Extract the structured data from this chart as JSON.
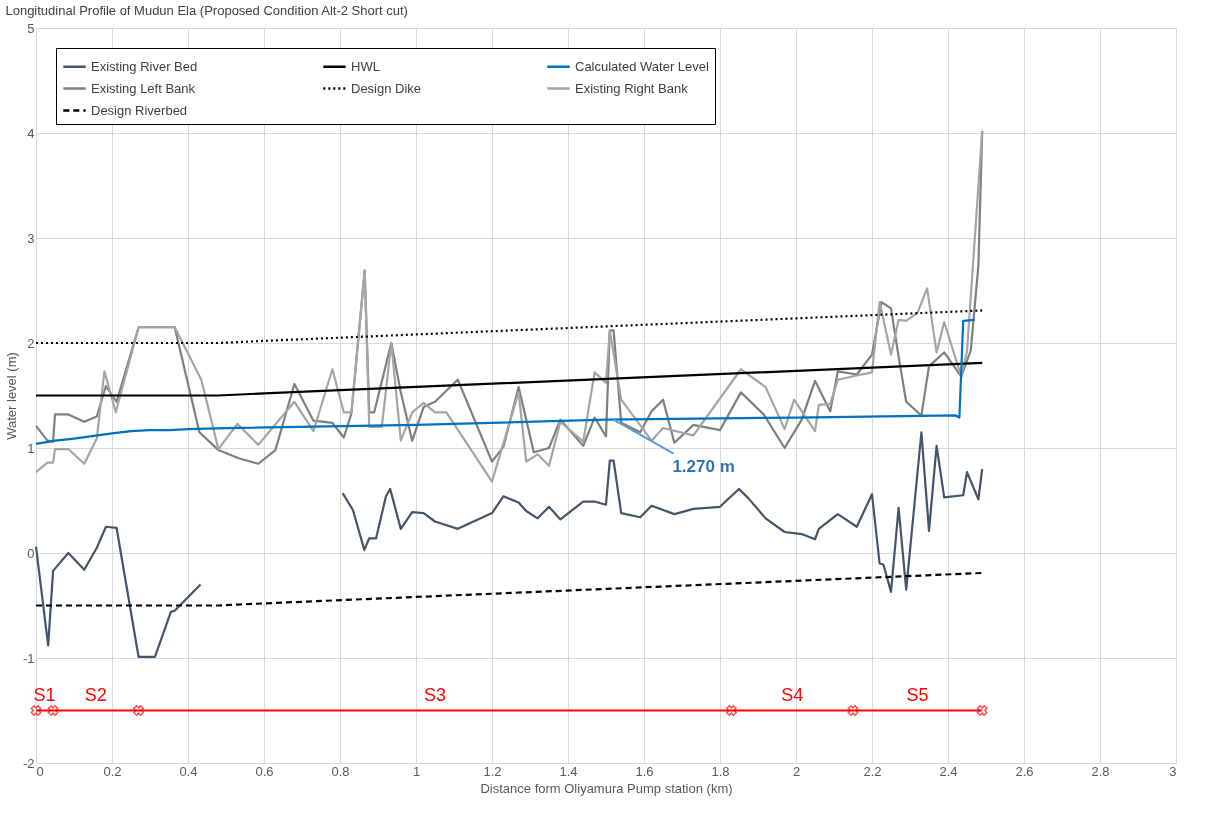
{
  "chart_data": {
    "type": "line",
    "title": "Longitudinal Profile of Mudun Ela (Proposed Condition Alt-2 Short cut)",
    "xlabel": "Distance form Oliyamura Pump station (km)",
    "ylabel": "Water level (m)",
    "xlim": [
      0,
      3
    ],
    "xticks": [
      0,
      0.2,
      0.4,
      0.6,
      0.8,
      1,
      1.2,
      1.4,
      1.6,
      1.8,
      2,
      2.2,
      2.4,
      2.6,
      2.8,
      3
    ],
    "ylim": [
      -2,
      5
    ],
    "yticks": [
      -2,
      -1,
      0,
      1,
      2,
      3,
      4,
      5
    ],
    "grid": true,
    "legend": "top",
    "series": [
      {
        "name": "Existing River Bed",
        "color": "#44546a",
        "line_style": "solid",
        "x": [
          0,
          0.032,
          0.045,
          0.085,
          0.127,
          0.16,
          0.184,
          0.212,
          0.27,
          0.313,
          0.355,
          0.365,
          0.433,
          0.6,
          0.807,
          0.834,
          0.864,
          0.877,
          0.895,
          0.921,
          0.932,
          0.96,
          0.99,
          1.02,
          1.05,
          1.11,
          1.2,
          1.23,
          1.27,
          1.29,
          1.32,
          1.35,
          1.38,
          1.44,
          1.47,
          1.5,
          1.51,
          1.52,
          1.54,
          1.59,
          1.62,
          1.68,
          1.73,
          1.8,
          1.82,
          1.85,
          1.875,
          1.92,
          1.97,
          2.015,
          2.05,
          2.06,
          2.11,
          2.16,
          2.2,
          2.22,
          2.23,
          2.25,
          2.27,
          2.29,
          2.33,
          2.35,
          2.37,
          2.39,
          2.44,
          2.45,
          2.48,
          2.49
        ],
        "values": [
          0.06,
          -0.88,
          -0.17,
          0.0,
          -0.16,
          0.05,
          0.25,
          0.24,
          -0.99,
          -0.99,
          -0.56,
          -0.55,
          -0.3,
          null,
          0.57,
          0.41,
          0.03,
          0.14,
          0.14,
          0.54,
          0.61,
          0.23,
          0.39,
          0.38,
          0.3,
          0.23,
          0.38,
          0.54,
          0.48,
          0.4,
          0.33,
          0.44,
          0.32,
          0.49,
          0.49,
          0.46,
          0.88,
          0.88,
          0.38,
          0.34,
          0.45,
          0.37,
          0.42,
          0.44,
          0.51,
          0.61,
          0.52,
          0.33,
          0.2,
          0.18,
          0.13,
          0.23,
          0.37,
          0.25,
          0.56,
          -0.1,
          -0.11,
          -0.37,
          0.43,
          -0.35,
          1.15,
          0.21,
          1.02,
          0.53,
          0.55,
          0.77,
          0.51,
          0.8
        ]
      },
      {
        "name": "Existing Left Bank",
        "color": "#7f7f7f",
        "line_style": "solid",
        "x": [
          0,
          0.03,
          0.045,
          0.05,
          0.085,
          0.127,
          0.16,
          0.184,
          0.212,
          0.27,
          0.365,
          0.43,
          0.48,
          0.535,
          0.585,
          0.63,
          0.68,
          0.73,
          0.78,
          0.81,
          0.83,
          0.865,
          0.877,
          0.89,
          0.935,
          0.96,
          0.99,
          1.02,
          1.05,
          1.11,
          1.2,
          1.23,
          1.27,
          1.31,
          1.35,
          1.38,
          1.44,
          1.47,
          1.5,
          1.51,
          1.52,
          1.54,
          1.59,
          1.62,
          1.65,
          1.68,
          1.73,
          1.8,
          1.855,
          1.915,
          1.97,
          2.015,
          2.05,
          2.09,
          2.11,
          2.16,
          2.2,
          2.225,
          2.25,
          2.27,
          2.29,
          2.33,
          2.35,
          2.39,
          2.435,
          2.46,
          2.48,
          2.49
        ],
        "values": [
          1.21,
          1.07,
          1.06,
          1.32,
          1.32,
          1.25,
          1.3,
          1.59,
          1.44,
          2.15,
          2.15,
          1.15,
          0.98,
          0.9,
          0.85,
          0.98,
          1.61,
          1.26,
          1.24,
          1.1,
          1.33,
          2.69,
          1.34,
          1.34,
          2.0,
          1.53,
          1.07,
          1.39,
          1.44,
          1.65,
          0.87,
          1.01,
          1.58,
          0.96,
          1.0,
          1.27,
          1.02,
          1.29,
          1.11,
          2.12,
          2.12,
          1.24,
          1.15,
          1.35,
          1.46,
          1.05,
          1.22,
          1.17,
          1.53,
          1.32,
          1.0,
          1.27,
          1.64,
          1.35,
          1.73,
          1.7,
          1.89,
          2.39,
          2.33,
          1.87,
          1.44,
          1.31,
          1.78,
          1.91,
          1.68,
          1.93,
          2.74,
          4.02
        ]
      },
      {
        "name": "Existing Right Bank",
        "color": "#a5a5a5",
        "line_style": "solid",
        "x": [
          0,
          0.03,
          0.045,
          0.05,
          0.085,
          0.127,
          0.16,
          0.18,
          0.21,
          0.27,
          0.365,
          0.435,
          0.48,
          0.53,
          0.585,
          0.68,
          0.73,
          0.78,
          0.81,
          0.83,
          0.865,
          0.877,
          0.91,
          0.935,
          0.96,
          0.99,
          1.02,
          1.05,
          1.08,
          1.2,
          1.27,
          1.29,
          1.32,
          1.35,
          1.38,
          1.44,
          1.47,
          1.5,
          1.51,
          1.54,
          1.62,
          1.65,
          1.73,
          1.855,
          1.92,
          1.97,
          1.995,
          2.05,
          2.06,
          2.09,
          2.11,
          2.16,
          2.2,
          2.22,
          2.25,
          2.27,
          2.29,
          2.32,
          2.345,
          2.37,
          2.39,
          2.435,
          2.45,
          2.49
        ],
        "values": [
          0.77,
          0.86,
          0.86,
          0.99,
          0.99,
          0.85,
          1.09,
          1.73,
          1.34,
          2.15,
          2.15,
          1.65,
          0.99,
          1.23,
          1.03,
          1.44,
          1.16,
          1.75,
          1.34,
          1.34,
          2.69,
          1.2,
          1.2,
          2.0,
          1.07,
          1.34,
          1.43,
          1.34,
          1.34,
          0.68,
          1.53,
          0.87,
          0.94,
          0.83,
          1.25,
          1.06,
          1.72,
          1.62,
          2.12,
          1.46,
          1.07,
          1.19,
          1.12,
          1.75,
          1.58,
          1.18,
          1.46,
          1.16,
          1.41,
          1.42,
          1.65,
          1.69,
          1.72,
          2.39,
          1.89,
          2.22,
          2.21,
          2.29,
          2.52,
          1.91,
          2.2,
          1.68,
          1.92,
          4.02
        ]
      },
      {
        "name": "HWL",
        "color": "#000000",
        "line_style": "solid",
        "x": [
          0,
          0.48,
          0.6,
          2.49
        ],
        "values": [
          1.5,
          1.5,
          1.52,
          1.81
        ]
      },
      {
        "name": "Design Dike",
        "color": "#000000",
        "line_style": "dotted",
        "x": [
          0,
          0.48,
          0.6,
          2.49
        ],
        "values": [
          2.0,
          2.0,
          2.02,
          2.31
        ]
      },
      {
        "name": "Design Riverbed",
        "color": "#000000",
        "line_style": "dashed",
        "x": [
          0,
          0.48,
          0.6,
          2.49
        ],
        "values": [
          -0.5,
          -0.5,
          -0.48,
          -0.19
        ]
      },
      {
        "name": "Calculated Water Level",
        "color": "#0070c0",
        "line_style": "solid",
        "x": [
          0,
          0.05,
          0.1,
          0.2,
          0.25,
          0.3,
          0.35,
          0.4,
          0.5,
          1.0,
          1.5,
          2.0,
          2.42,
          2.43,
          2.44,
          2.47
        ],
        "values": [
          1.04,
          1.07,
          1.09,
          1.14,
          1.16,
          1.17,
          1.17,
          1.18,
          1.19,
          1.22,
          1.27,
          1.29,
          1.31,
          1.29,
          2.21,
          2.22
        ]
      },
      {
        "color": "#ff0000",
        "line_style": "solid",
        "marker": "cross",
        "x": [
          0,
          0.045,
          0.27,
          1.83,
          2.15,
          2.49
        ],
        "values": [
          -1.5,
          -1.5,
          -1.5,
          -1.5,
          -1.5,
          -1.5
        ]
      }
    ],
    "annotations": [
      "S1",
      "S2",
      "S3",
      "S4",
      "S5",
      {
        "text": "1.270 m",
        "x": 1.52,
        "y": 1.27
      }
    ]
  }
}
